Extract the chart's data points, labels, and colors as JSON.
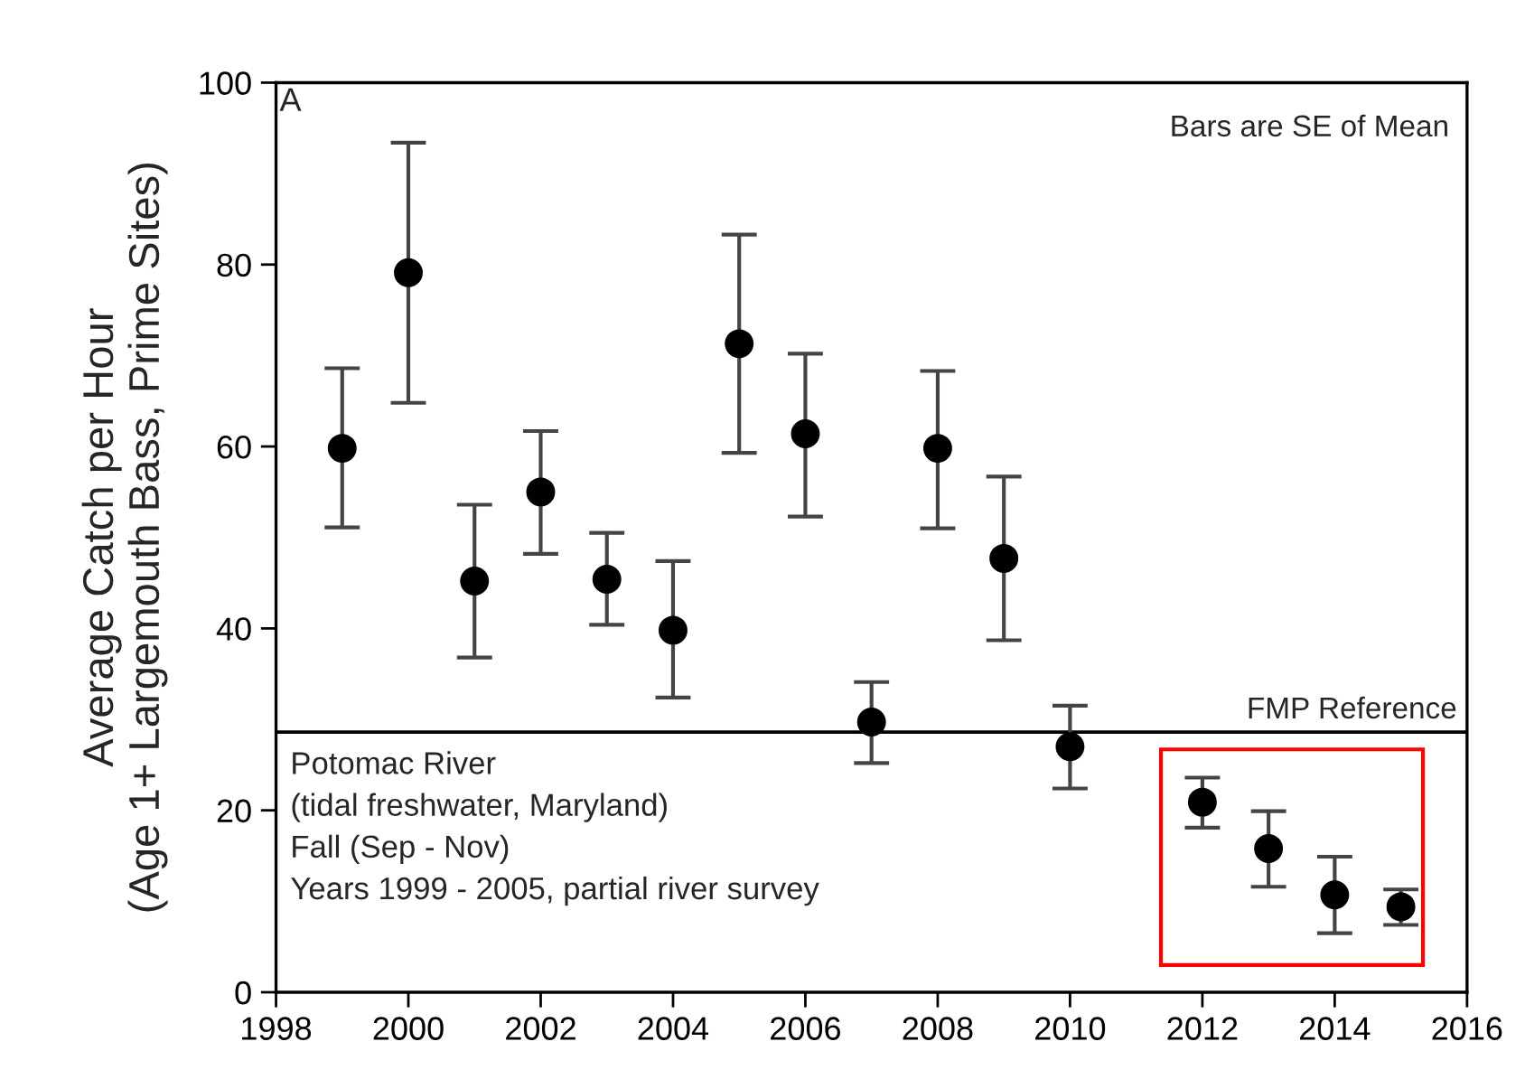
{
  "chart_data": {
    "type": "scatter",
    "ylabel": "Average Catch per Hour\n(Age 1+ Largemouth Bass, Prime Sites)",
    "x": [
      1999,
      2000,
      2001,
      2002,
      2003,
      2004,
      2005,
      2006,
      2007,
      2008,
      2009,
      2010,
      2012,
      2013,
      2014,
      2015
    ],
    "marker": "circle",
    "series": [
      {
        "color": "#000000",
        "values": [
          59.8,
          79.1,
          45.2,
          55.0,
          45.4,
          39.8,
          71.3,
          61.4,
          29.7,
          59.8,
          47.7,
          27.0,
          20.9,
          15.8,
          10.7,
          9.4
        ],
        "errors": [
          [
            51.1,
            68.6
          ],
          [
            64.8,
            93.4
          ],
          [
            36.8,
            53.6
          ],
          [
            48.2,
            61.7
          ],
          [
            40.4,
            50.5
          ],
          [
            32.4,
            47.4
          ],
          [
            59.3,
            83.3
          ],
          [
            52.3,
            70.2
          ],
          [
            25.2,
            34.1
          ],
          [
            51.0,
            68.3
          ],
          [
            38.7,
            56.7
          ],
          [
            22.4,
            31.5
          ],
          [
            18.1,
            23.6
          ],
          [
            11.6,
            19.9
          ],
          [
            6.5,
            14.9
          ],
          [
            7.4,
            11.3
          ]
        ]
      }
    ],
    "xlim": [
      1998,
      2016
    ],
    "xticks": [
      1998,
      2000,
      2002,
      2004,
      2006,
      2008,
      2010,
      2012,
      2014,
      2016
    ],
    "ylim": [
      0,
      100
    ],
    "yticks": [
      0,
      20,
      40,
      60,
      80,
      100
    ],
    "ref_lines": [
      {
        "axis": "y",
        "value": 28.6,
        "label": "FMP Reference",
        "color": "#000000"
      }
    ],
    "annotations": [
      "A",
      "Bars are SE of Mean",
      "Potomac River\n(tidal freshwater, Maryland)\nFall (Sep - Nov)\nYears 1999 - 2005, partial river survey"
    ],
    "grid": false,
    "legend": false
  }
}
